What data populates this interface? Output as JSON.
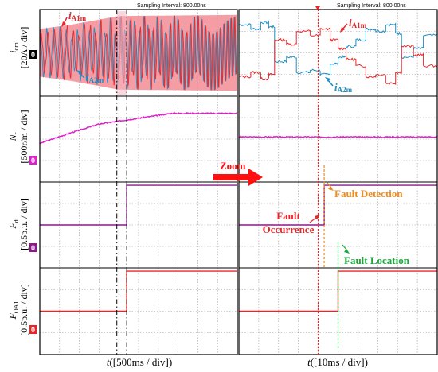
{
  "header": {
    "left": "Sampling Interval:  800.00ns",
    "right": "Sampling Interval:  800.00ns"
  },
  "ylabels": [
    {
      "var": "i",
      "sub": "om",
      "unit": "[20A / div]"
    },
    {
      "var": "N",
      "sub": "r",
      "unit": "[500r/m / div]"
    },
    {
      "var": "F",
      "sub": "d",
      "unit": "[0.5p.u. / div]"
    },
    {
      "var": "F",
      "sub": "OA1",
      "unit": "[0.5p.u. / div]"
    }
  ],
  "markers": [
    "0",
    "0",
    "0",
    "0"
  ],
  "xlabels": {
    "left": {
      "var": "t",
      "unit": "([500ms / div])"
    },
    "right": {
      "var": "t",
      "unit": "([10ms / div])"
    }
  },
  "annotations": {
    "zoom": "Zoom",
    "fault_detection": "Fault Detection",
    "fault_occurrence_1": "Fault",
    "fault_occurrence_2": "Occurrence",
    "fault_location": "Fault Location",
    "ia1_left": {
      "main": "i",
      "sub": "A1m"
    },
    "ia2_left": {
      "main": "i",
      "sub": "A2m"
    },
    "ia1_right": {
      "main": "i",
      "sub": "A1m"
    },
    "ia2_right": {
      "main": "i",
      "sub": "A2m"
    }
  },
  "colors": {
    "grid": "#9a9a9a",
    "ia1": "#e8262a",
    "ia2": "#1b8fc6",
    "speed": "#e020c8",
    "fd": "#8b1a8b",
    "foa": "#e8262a",
    "fault_occurrence": "#e8262a",
    "fault_detection": "#f28a1e",
    "fault_location": "#1aa83a",
    "marker_mag": "#e020c8",
    "marker_purple": "#8b1a8b"
  },
  "chart_data": [
    {
      "type": "line",
      "panel": "left",
      "x_unit": "500ms/div",
      "x_divisions": 10,
      "series": [
        {
          "name": "iA1m",
          "label": "i_A1m",
          "trace": "three-level switching current, envelope grows with speed, amplitude in divisions",
          "envelope_div": [
            [
              0,
              1.1
            ],
            [
              1.6,
              1.3
            ],
            [
              4.0,
              1.7
            ],
            [
              10,
              1.75
            ]
          ]
        },
        {
          "name": "iA2m",
          "label": "i_A2m",
          "envelope_div": [
            [
              0,
              1.1
            ],
            [
              1.6,
              1.3
            ],
            [
              4.0,
              1.7
            ],
            [
              10,
              1.75
            ]
          ]
        },
        {
          "name": "Nr",
          "trace_div": [
            [
              0,
              -0.2
            ],
            [
              1.6,
              0.3
            ],
            [
              3.0,
              0.7
            ],
            [
              6.7,
              1.2
            ],
            [
              10,
              1.2
            ]
          ]
        },
        {
          "name": "Fd",
          "steps": [
            {
              "x_div": 0,
              "level": 0
            },
            {
              "x_div": 4.4,
              "level": 1
            }
          ]
        },
        {
          "name": "FOA1",
          "steps": [
            {
              "x_div": 0,
              "level": 0
            },
            {
              "x_div": 4.4,
              "level": 1
            }
          ]
        }
      ],
      "cursors_x_div": [
        3.9,
        4.4
      ]
    },
    {
      "type": "line",
      "panel": "right",
      "x_unit": "10ms/div",
      "x_divisions": 10,
      "series": [
        {
          "name": "iA1m",
          "label": "i_A1m"
        },
        {
          "name": "iA2m",
          "label": "i_A2m"
        },
        {
          "name": "Nr",
          "trace_div": [
            [
              0,
              0.1
            ],
            [
              10,
              0.1
            ]
          ]
        },
        {
          "name": "Fd",
          "steps": [
            {
              "x_div": 0,
              "level": 0
            },
            {
              "x_div": 4.3,
              "level": 1
            }
          ]
        },
        {
          "name": "FOA1",
          "steps": [
            {
              "x_div": 0,
              "level": 0
            },
            {
              "x_div": 5.0,
              "level": 1
            }
          ]
        }
      ],
      "events_x_div": {
        "fault_occurrence": 4.0,
        "fault_detection": 4.3,
        "fault_location": 5.0
      }
    }
  ]
}
